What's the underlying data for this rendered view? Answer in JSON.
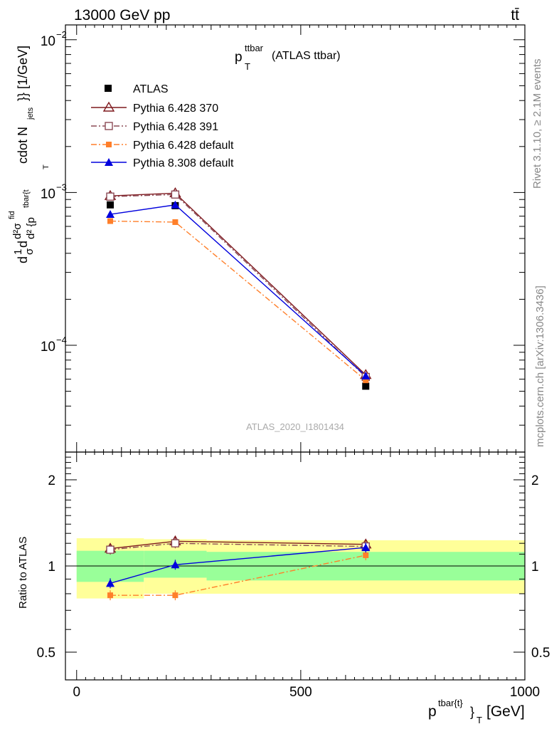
{
  "header": {
    "left": "13000 GeV pp",
    "right": "tt̄"
  },
  "title": {
    "main": "p",
    "sub": "T",
    "sup": "ttbar",
    "rest": "(ATLAS ttbar)"
  },
  "side_text": {
    "rivet": "Rivet 3.1.10, ≥ 2.1M events",
    "mcplots": "mcplots.cern.ch [arXiv:1306.3436]"
  },
  "watermark": "ATLAS_2020_I1801434",
  "y_label_main": "d 1/σ dσ/d{p_T^{tbar{t}}} cdot N_jets}} [1/GeV]",
  "y_label_main_parts": {
    "a": "d",
    "b": "1",
    "c": "σ",
    "d": "d",
    "e": "d²σ",
    "e_sup": "fid",
    "f": "d² {p",
    "f_sup": "tbar{t",
    "f_sub": "T",
    "g": "cdot N",
    "g_sub": "jets",
    "h": "}} [1/GeV]"
  },
  "y_label_ratio": "Ratio to ATLAS",
  "x_label": {
    "main": "p",
    "sup": "tbar{t}",
    "brace": "}",
    "sub": "T",
    "unit": "[GeV]"
  },
  "colors": {
    "atlas": "#000000",
    "py6_370": "#7f1a1f",
    "py6_391": "#8b4a55",
    "py6_default": "#ff7f2a",
    "py8_default": "#0000dd",
    "band_inner": "#99ff99",
    "band_outer": "#ffff99"
  },
  "chart_data": {
    "type": "line",
    "x_unit": "GeV",
    "xlim": [
      -25,
      1000
    ],
    "x_ticks": [
      0,
      500,
      1000
    ],
    "main_panel": {
      "yscale": "log",
      "ylim": [
        2e-05,
        0.0125
      ],
      "y_tick_labels": [
        "10^-2",
        "10^-3",
        "10^-4"
      ],
      "y_tick_values": [
        0.01,
        0.001,
        0.0001
      ]
    },
    "ratio_panel": {
      "yscale": "log",
      "ylim": [
        0.4,
        2.5
      ],
      "y_tick_labels": [
        "0.5",
        "1",
        "2"
      ],
      "y_tick_values": [
        0.5,
        1,
        2
      ]
    },
    "x": [
      75,
      220,
      645
    ],
    "x_edges": [
      [
        0,
        150
      ],
      [
        150,
        290
      ],
      [
        290,
        1000
      ]
    ],
    "legend": {
      "placement": "top-left",
      "entries": [
        "ATLAS",
        "Pythia 6.428 370",
        "Pythia 6.428 391",
        "Pythia 6.428 default",
        "Pythia 8.308 default"
      ]
    },
    "series": [
      {
        "name": "ATLAS",
        "values": [
          0.00083,
          0.00082,
          5.4e-05
        ],
        "marker": "square",
        "style": "points"
      },
      {
        "name": "Pythia 6.428 370",
        "values": [
          0.00095,
          0.00099,
          6.4e-05
        ],
        "marker": "triangle-open",
        "style": "solid"
      },
      {
        "name": "Pythia 6.428 391",
        "values": [
          0.00094,
          0.00097,
          6.2e-05
        ],
        "marker": "square-open",
        "style": "dashdot"
      },
      {
        "name": "Pythia 6.428 default",
        "values": [
          0.00065,
          0.00064,
          5.9e-05
        ],
        "marker": "square-small",
        "style": "dashdot"
      },
      {
        "name": "Pythia 8.308 default",
        "values": [
          0.00072,
          0.00083,
          6.3e-05
        ],
        "marker": "triangle",
        "style": "solid"
      }
    ],
    "ratio_series": [
      {
        "name": "Pythia 6.428 370",
        "values": [
          1.15,
          1.22,
          1.19
        ]
      },
      {
        "name": "Pythia 6.428 391",
        "values": [
          1.14,
          1.2,
          1.17
        ]
      },
      {
        "name": "Pythia 6.428 default",
        "values": [
          0.79,
          0.79,
          1.09
        ]
      },
      {
        "name": "Pythia 8.308 default",
        "values": [
          0.87,
          1.01,
          1.16
        ]
      }
    ],
    "ratio_bands": {
      "inner": [
        [
          0.88,
          1.13
        ],
        [
          0.91,
          1.13
        ],
        [
          0.89,
          1.12
        ]
      ],
      "outer": [
        [
          0.77,
          1.25
        ],
        [
          0.8,
          1.24
        ],
        [
          0.8,
          1.23
        ]
      ]
    }
  }
}
